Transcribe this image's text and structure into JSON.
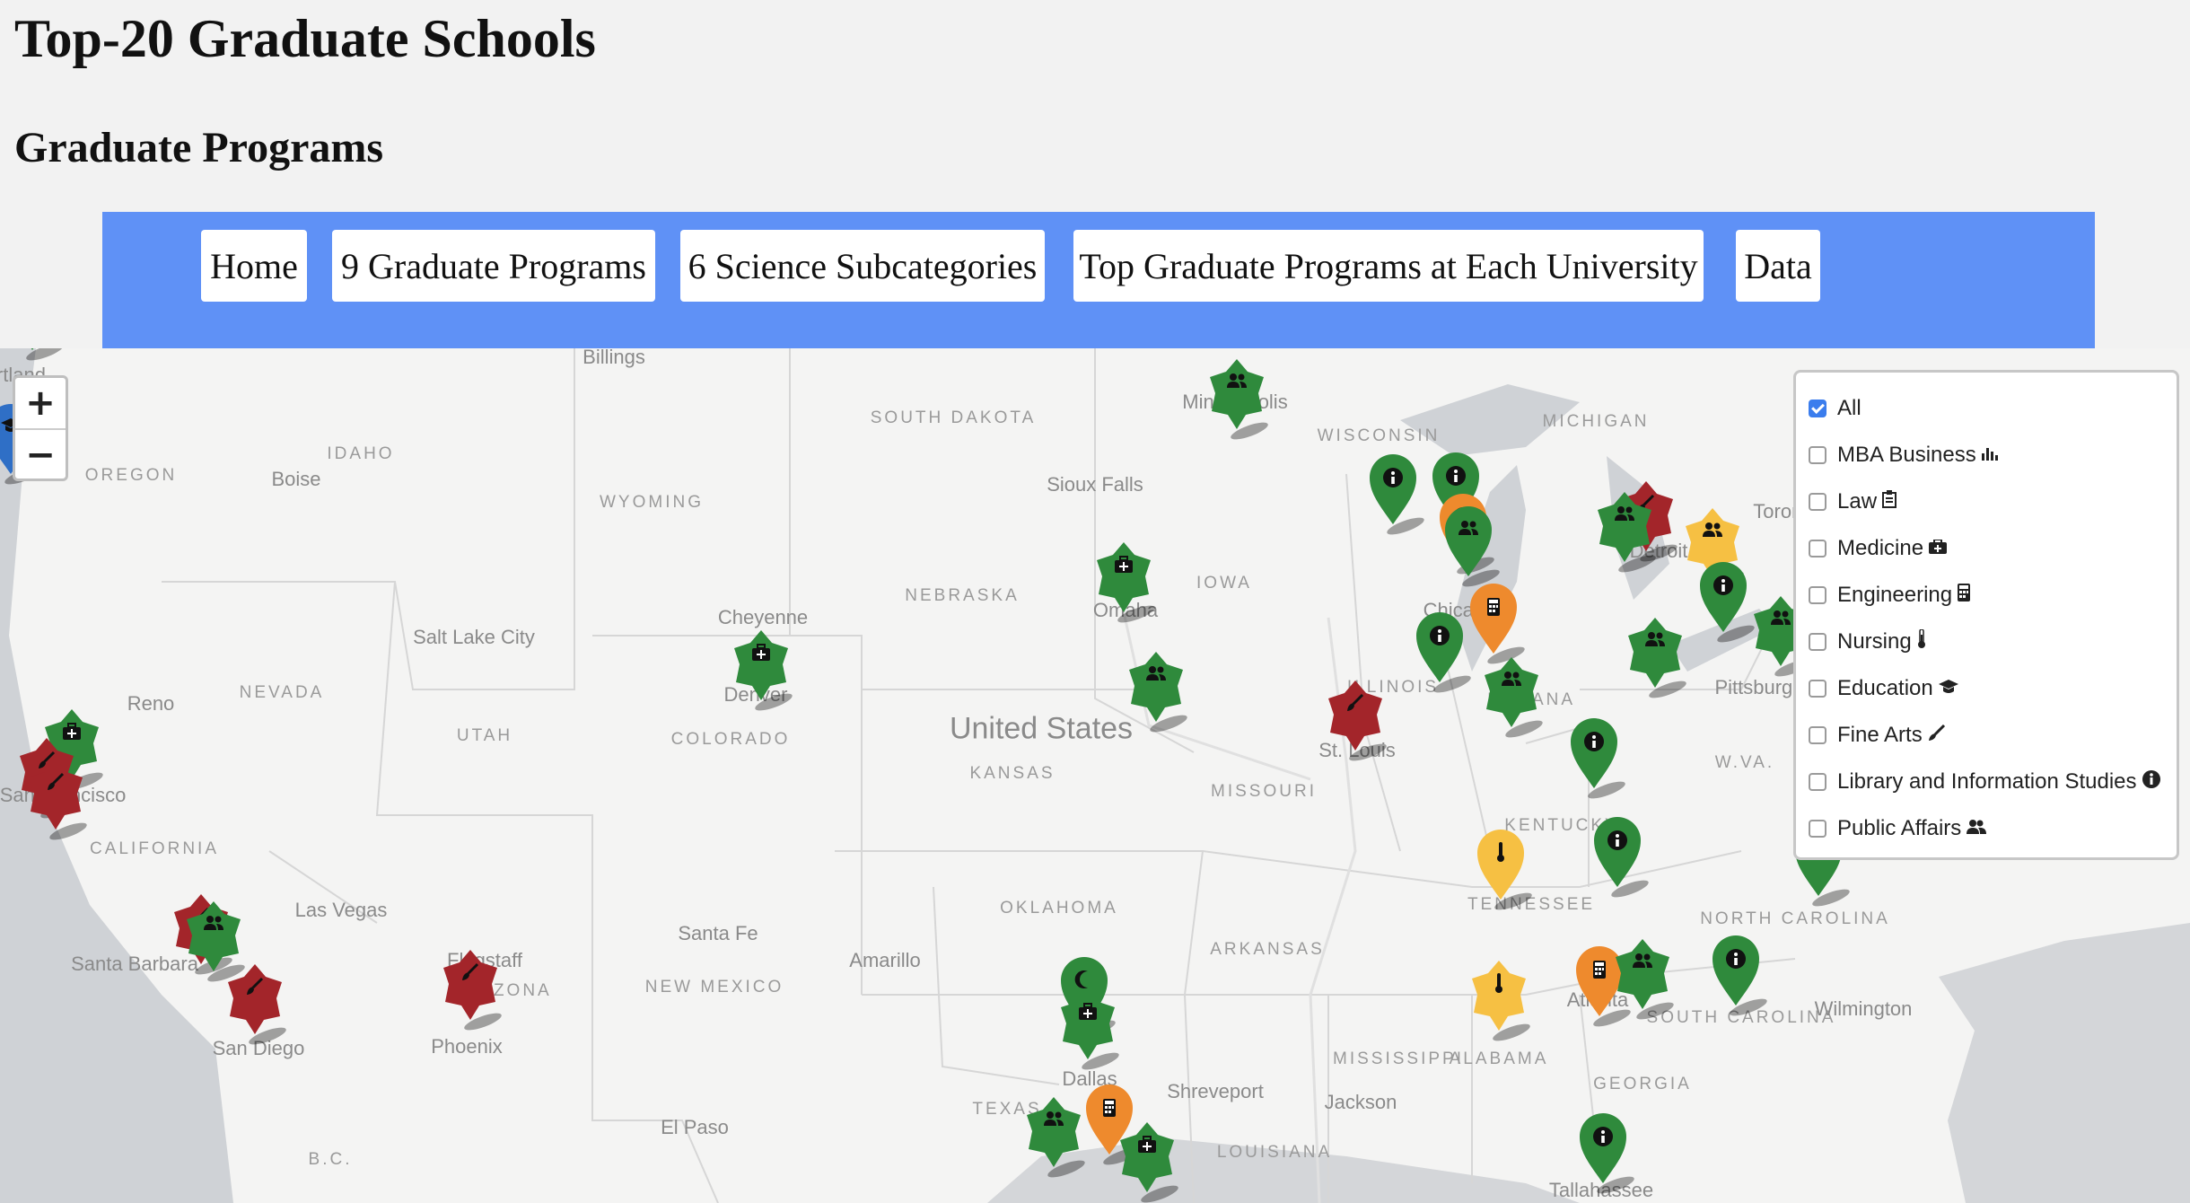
{
  "header": {
    "title": "Top-20 Graduate Schools",
    "subtitle": "Graduate Programs"
  },
  "nav": {
    "items": [
      {
        "label": "Home"
      },
      {
        "label": "9 Graduate Programs"
      },
      {
        "label": "6 Science Subcategories"
      },
      {
        "label": "Top Graduate Programs at Each University"
      },
      {
        "label": "Data"
      }
    ]
  },
  "map": {
    "zoom_in_label": "+",
    "zoom_out_label": "−",
    "country_label": "United States",
    "state_labels": [
      "OREGON",
      "IDAHO",
      "WYOMING",
      "SOUTH DAKOTA",
      "NEBRASKA",
      "IOWA",
      "WISCONSIN",
      "MICHIGAN",
      "NEVADA",
      "UTAH",
      "COLORADO",
      "KANSAS",
      "MISSOURI",
      "ILLINOIS",
      "INDIANA",
      "KENTUCKY",
      "CALIFORNIA",
      "OKLAHOMA",
      "ARKANSAS",
      "TENNESSEE",
      "NORTH CAROLINA",
      "W.VA.",
      "NEW MEXICO",
      "ARIZONA",
      "TEXAS",
      "MISSISSIPPI",
      "ALABAMA",
      "GEORGIA",
      "SOUTH CAROLINA",
      "LOUISIANA",
      "B.C."
    ],
    "city_labels": [
      "Billings",
      "Boise",
      "Minneapolis",
      "Sioux Falls",
      "Cheyenne",
      "Salt Lake City",
      "Reno",
      "Denver",
      "Omaha",
      "Chicago",
      "Detroit",
      "Toronto",
      "Pittsburgh",
      "St. Louis",
      "Las Vegas",
      "Santa Barbara",
      "San Diego",
      "Santa Fe",
      "Amarillo",
      "Flagstaff",
      "Phoenix",
      "Dallas",
      "Shreveport",
      "El Paso",
      "Jackson",
      "Atlanta",
      "Wilmington",
      "Tallahassee",
      "San Francisco",
      "Portland"
    ],
    "marker_colors": {
      "green": "#2f8a3c",
      "red": "#a3252a",
      "orange": "#ee8a2d",
      "yellow": "#f6c043",
      "blue": "#2f6fc6"
    }
  },
  "layers": {
    "items": [
      {
        "label": "All",
        "icon": "",
        "icon_name": "",
        "checked": true
      },
      {
        "label": "MBA Business",
        "icon": "📊",
        "icon_name": "chart-icon",
        "checked": false
      },
      {
        "label": "Law",
        "icon": "📋",
        "icon_name": "clipboard-icon",
        "checked": false
      },
      {
        "label": "Medicine",
        "icon": "🩺",
        "icon_name": "medkit-icon",
        "checked": false
      },
      {
        "label": "Engineering",
        "icon": "▦",
        "icon_name": "calculator-icon",
        "checked": false
      },
      {
        "label": "Nursing",
        "icon": "🌡",
        "icon_name": "thermometer-icon",
        "checked": false
      },
      {
        "label": "Education",
        "icon": "🎓",
        "icon_name": "graduation-cap-icon",
        "checked": false
      },
      {
        "label": "Fine Arts",
        "icon": "🖌",
        "icon_name": "paintbrush-icon",
        "checked": false
      },
      {
        "label": "Library and Information Studies",
        "icon": "ℹ",
        "icon_name": "info-icon",
        "checked": false
      },
      {
        "label": "Public Affairs",
        "icon": "👥",
        "icon_name": "users-icon",
        "checked": false
      }
    ]
  }
}
